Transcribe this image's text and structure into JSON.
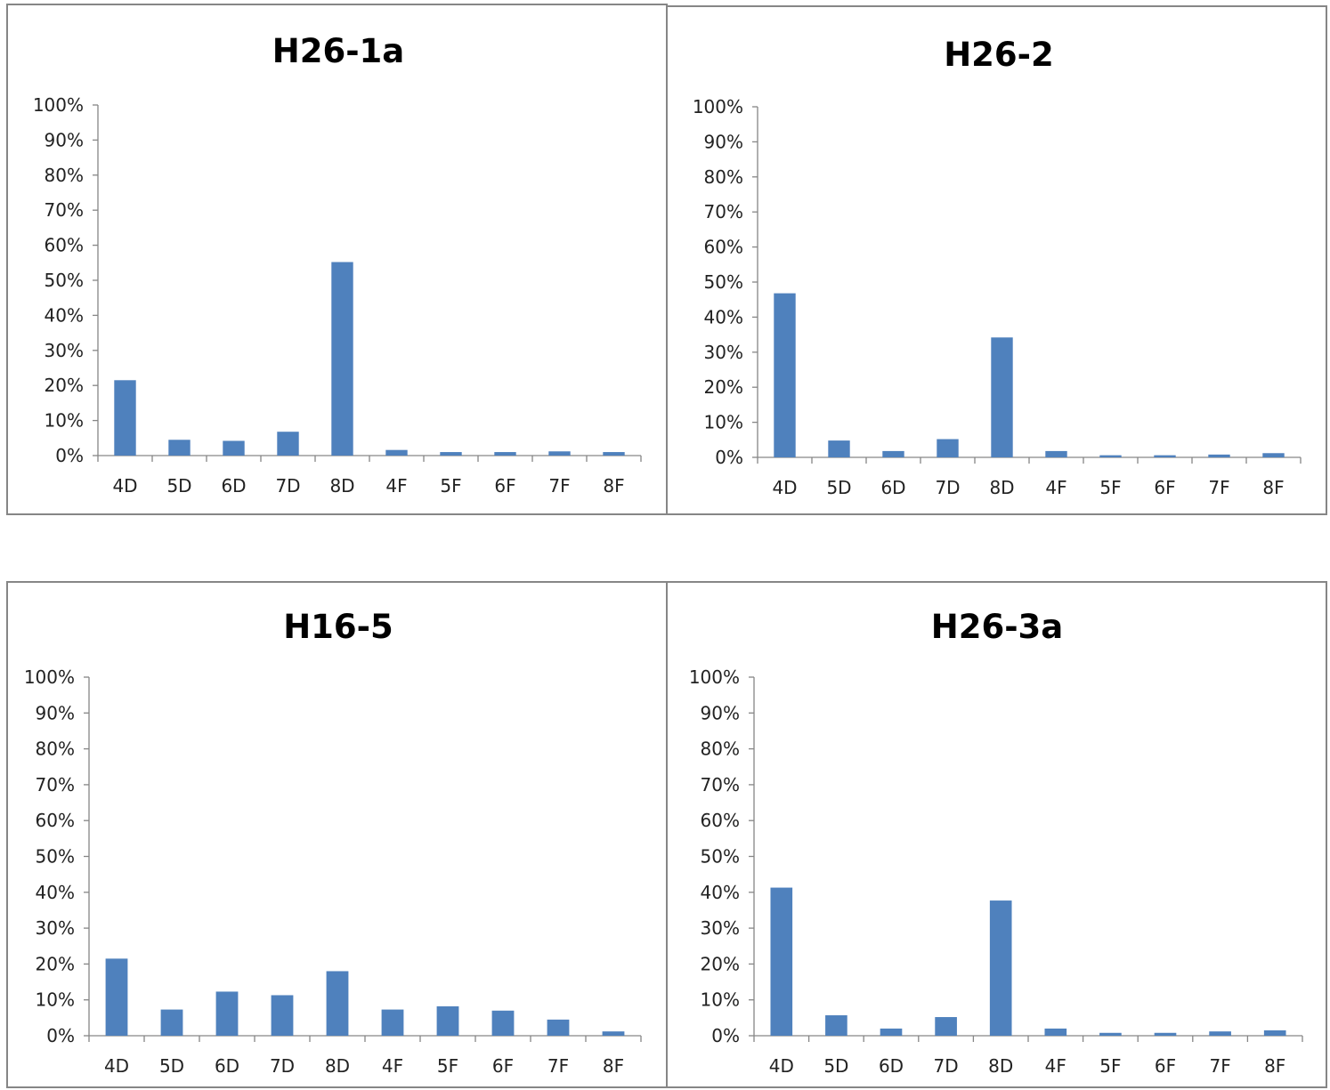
{
  "chart_data": [
    {
      "type": "bar",
      "title": "H26-1a",
      "categories": [
        "4D",
        "5D",
        "6D",
        "7D",
        "8D",
        "4F",
        "5F",
        "6F",
        "7F",
        "8F"
      ],
      "values": [
        21.5,
        4.5,
        4.2,
        6.8,
        55.2,
        1.6,
        1.0,
        1.0,
        1.2,
        1.0
      ],
      "y_ticks": [
        "0%",
        "10%",
        "20%",
        "30%",
        "40%",
        "50%",
        "60%",
        "70%",
        "80%",
        "90%",
        "100%"
      ],
      "ylim": [
        0,
        100
      ],
      "grid": false,
      "color": "#4f81bd"
    },
    {
      "type": "bar",
      "title": "H26-2",
      "categories": [
        "4D",
        "5D",
        "6D",
        "7D",
        "8D",
        "4F",
        "5F",
        "6F",
        "7F",
        "8F"
      ],
      "values": [
        46.8,
        4.8,
        1.8,
        5.2,
        34.2,
        1.8,
        0.6,
        0.6,
        0.8,
        1.2
      ],
      "y_ticks": [
        "0%",
        "10%",
        "20%",
        "30%",
        "40%",
        "50%",
        "60%",
        "70%",
        "80%",
        "90%",
        "100%"
      ],
      "ylim": [
        0,
        100
      ],
      "grid": false,
      "color": "#4f81bd"
    },
    {
      "type": "bar",
      "title": "H16-5",
      "categories": [
        "4D",
        "5D",
        "6D",
        "7D",
        "8D",
        "4F",
        "5F",
        "6F",
        "7F",
        "8F"
      ],
      "values": [
        21.5,
        7.3,
        12.3,
        11.3,
        18.0,
        7.3,
        8.2,
        7.0,
        4.5,
        1.2
      ],
      "y_ticks": [
        "0%",
        "10%",
        "20%",
        "30%",
        "40%",
        "50%",
        "60%",
        "70%",
        "80%",
        "90%",
        "100%"
      ],
      "ylim": [
        0,
        100
      ],
      "grid": false,
      "color": "#4f81bd"
    },
    {
      "type": "bar",
      "title": "H26-3a",
      "categories": [
        "4D",
        "5D",
        "6D",
        "7D",
        "8D",
        "4F",
        "5F",
        "6F",
        "7F",
        "8F"
      ],
      "values": [
        41.3,
        5.7,
        2.0,
        5.2,
        37.7,
        2.0,
        0.8,
        0.8,
        1.2,
        1.5
      ],
      "y_ticks": [
        "0%",
        "10%",
        "20%",
        "30%",
        "40%",
        "50%",
        "60%",
        "70%",
        "80%",
        "90%",
        "100%"
      ],
      "ylim": [
        0,
        100
      ],
      "grid": false,
      "color": "#4f81bd"
    }
  ]
}
